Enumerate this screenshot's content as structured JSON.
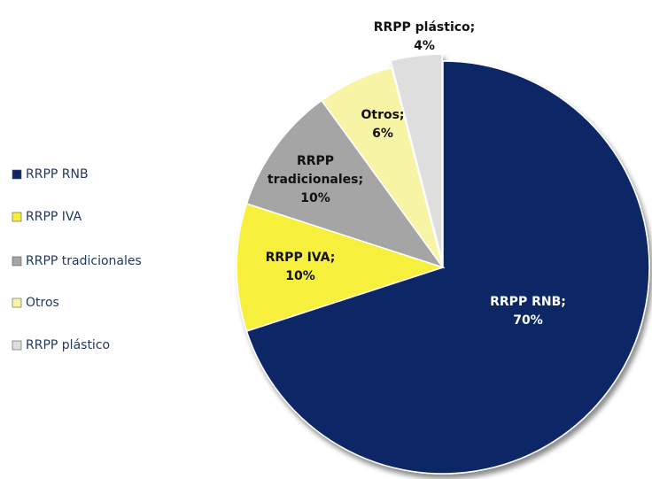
{
  "chart_data": {
    "type": "pie",
    "categories": [
      "RRPP RNB",
      "RRPP IVA",
      "RRPP tradicionales",
      "Otros",
      "RRPP plástico"
    ],
    "values": [
      70,
      10,
      10,
      6,
      4
    ],
    "value_labels": [
      "70%",
      "10%",
      "10%",
      "6%",
      "4%"
    ],
    "label_names": [
      [
        "RRPP RNB;"
      ],
      [
        "RRPP IVA;"
      ],
      [
        "RRPP",
        "tradicionales;"
      ],
      [
        "Otros;"
      ],
      [
        "RRPP plástico;"
      ]
    ],
    "colors": [
      "#0e2565",
      "#f6f03c",
      "#a5a5a5",
      "#f8f4a6",
      "#dedede"
    ],
    "legend": "left"
  }
}
